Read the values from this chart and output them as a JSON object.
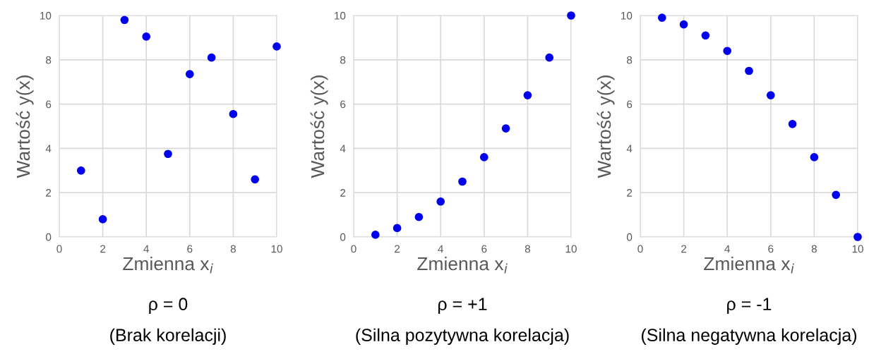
{
  "chart_data": [
    {
      "type": "scatter",
      "x": [
        1,
        2,
        3,
        4,
        5,
        6,
        7,
        8,
        9,
        10
      ],
      "xlabel": "Zmienna x$_{i}$",
      "ylabel": "Wartość y(x)",
      "xlim": [
        0,
        10
      ],
      "ylim": [
        0,
        10
      ],
      "xticks": [
        0,
        2,
        4,
        6,
        8,
        10
      ],
      "yticks": [
        0,
        2,
        4,
        6,
        8,
        10
      ],
      "grid": true,
      "marker": "circle",
      "series": [
        {
          "color": "#0000ee",
          "values": [
            3.0,
            0.8,
            9.8,
            9.05,
            3.75,
            7.35,
            8.1,
            5.55,
            2.6,
            8.6
          ]
        }
      ],
      "annotations": [
        "ρ = 0",
        "(Brak korelacji)"
      ]
    },
    {
      "type": "scatter",
      "x": [
        1,
        2,
        3,
        4,
        5,
        6,
        7,
        8,
        9,
        10
      ],
      "xlabel": "Zmienna x$_{i}$",
      "ylabel": "Wartość y(x)",
      "xlim": [
        0,
        10
      ],
      "ylim": [
        0,
        10
      ],
      "xticks": [
        0,
        2,
        4,
        6,
        8,
        10
      ],
      "yticks": [
        0,
        2,
        4,
        6,
        8,
        10
      ],
      "grid": true,
      "marker": "circle",
      "series": [
        {
          "color": "#0000ee",
          "values": [
            0.1,
            0.4,
            0.9,
            1.6,
            2.5,
            3.6,
            4.9,
            6.4,
            8.1,
            10
          ]
        }
      ],
      "annotations": [
        "ρ = +1",
        "(Silna pozytywna korelacja)"
      ]
    },
    {
      "type": "scatter",
      "x": [
        1,
        2,
        3,
        4,
        5,
        6,
        7,
        8,
        9,
        10
      ],
      "xlabel": "Zmienna x$_{i}$",
      "ylabel": "Wartość y(x)",
      "xlim": [
        0,
        10
      ],
      "ylim": [
        0,
        10
      ],
      "xticks": [
        0,
        2,
        4,
        6,
        8,
        10
      ],
      "yticks": [
        0,
        2,
        4,
        6,
        8,
        10
      ],
      "grid": true,
      "marker": "circle",
      "series": [
        {
          "color": "#0000ee",
          "values": [
            9.9,
            9.6,
            9.1,
            8.4,
            7.5,
            6.4,
            5.1,
            3.6,
            1.9,
            0
          ]
        }
      ],
      "annotations": [
        "ρ = -1",
        "(Silna negatywna korelacja)"
      ]
    }
  ]
}
